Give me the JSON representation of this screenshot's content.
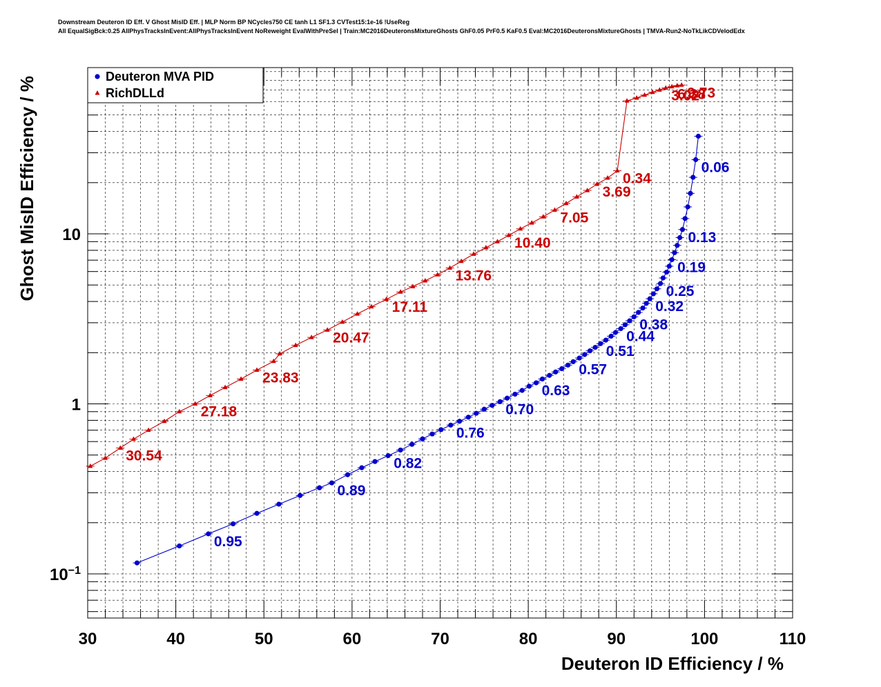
{
  "title": {
    "line1": "Downstream Deuteron ID Eff. V Ghost MisID Eff. | MLP Norm BP NCycles750 CE tanh L1 SF1.3 CVTest15:1e-16 !UseReg",
    "line2": "All EqualSigBck:0.25 AllPhysTracksInEvent:AllPhysTracksInEvent NoReweight EvalWithPreSel | Train:MC2016DeuteronsMixtureGhosts GhF0.05 PrF0.5 KaF0.5 Eval:MC2016DeuteronsMixtureGhosts | TMVA-Run2-NoTkLikCDVelodEdx"
  },
  "chart_data": {
    "type": "line",
    "xlabel": "Deuteron ID Efficiency / %",
    "ylabel": "Ghost MisID Efficiency / %",
    "xlim": [
      30,
      110
    ],
    "ylim": [
      0.055,
      95
    ],
    "y_scale": "log",
    "grid": true,
    "legend_position": "top-left",
    "x_ticks": [
      "30",
      "40",
      "50",
      "60",
      "70",
      "80",
      "90",
      "100",
      "110"
    ],
    "y_ticks": [
      {
        "base": "10",
        "exp": "−1",
        "value": 0.1
      },
      {
        "base": "1",
        "exp": "",
        "value": 1
      },
      {
        "base": "10",
        "exp": "",
        "value": 10
      }
    ],
    "series": [
      {
        "name": "Deuteron MVA PID",
        "color": "#0000cc",
        "marker": "circle",
        "points": [
          [
            35.6,
            0.116
          ],
          [
            40.4,
            0.146
          ],
          [
            43.7,
            0.172
          ],
          [
            46.5,
            0.197
          ],
          [
            49.2,
            0.227
          ],
          [
            51.7,
            0.257
          ],
          [
            54.1,
            0.289
          ],
          [
            56.3,
            0.321
          ],
          [
            57.7,
            0.343
          ],
          [
            59.5,
            0.383
          ],
          [
            61.1,
            0.421
          ],
          [
            62.6,
            0.458
          ],
          [
            64.1,
            0.496
          ],
          [
            65.5,
            0.535
          ],
          [
            66.8,
            0.578
          ],
          [
            68.0,
            0.622
          ],
          [
            69.1,
            0.665
          ],
          [
            70.1,
            0.705
          ],
          [
            71.2,
            0.75
          ],
          [
            72.2,
            0.79
          ],
          [
            73.2,
            0.835
          ],
          [
            74.1,
            0.88
          ],
          [
            75.0,
            0.93
          ],
          [
            75.9,
            0.98
          ],
          [
            76.8,
            1.03
          ],
          [
            77.6,
            1.08
          ],
          [
            78.5,
            1.14
          ],
          [
            79.3,
            1.2
          ],
          [
            80.1,
            1.27
          ],
          [
            80.9,
            1.33
          ],
          [
            81.6,
            1.4
          ],
          [
            82.4,
            1.47
          ],
          [
            83.1,
            1.54
          ],
          [
            83.8,
            1.61
          ],
          [
            84.5,
            1.69
          ],
          [
            85.1,
            1.77
          ],
          [
            85.8,
            1.86
          ],
          [
            86.4,
            1.95
          ],
          [
            87.0,
            2.05
          ],
          [
            87.6,
            2.15
          ],
          [
            88.2,
            2.26
          ],
          [
            88.8,
            2.37
          ],
          [
            89.4,
            2.5
          ],
          [
            89.9,
            2.63
          ],
          [
            90.5,
            2.77
          ],
          [
            91.0,
            2.92
          ],
          [
            91.5,
            3.08
          ],
          [
            92.0,
            3.25
          ],
          [
            92.5,
            3.45
          ],
          [
            93.0,
            3.66
          ],
          [
            93.4,
            3.9
          ],
          [
            93.8,
            4.15
          ],
          [
            94.2,
            4.44
          ],
          [
            94.6,
            4.75
          ],
          [
            95.0,
            5.1
          ],
          [
            95.3,
            5.5
          ],
          [
            95.7,
            5.95
          ],
          [
            96.0,
            6.45
          ],
          [
            96.3,
            7.05
          ],
          [
            96.6,
            7.75
          ],
          [
            96.9,
            8.55
          ],
          [
            97.2,
            9.5
          ],
          [
            97.5,
            10.6
          ],
          [
            97.8,
            12.3
          ],
          [
            98.1,
            14.4
          ],
          [
            98.4,
            17.3
          ],
          [
            98.7,
            21.5
          ],
          [
            99.0,
            27.3
          ],
          [
            99.3,
            37.5
          ]
        ],
        "labels": [
          {
            "text": "0.95",
            "x": 43.7,
            "y": 0.172
          },
          {
            "text": "0.89",
            "x": 57.7,
            "y": 0.343
          },
          {
            "text": "0.82",
            "x": 64.1,
            "y": 0.496
          },
          {
            "text": "0.76",
            "x": 71.2,
            "y": 0.75
          },
          {
            "text": "0.70",
            "x": 76.8,
            "y": 1.03
          },
          {
            "text": "0.63",
            "x": 80.9,
            "y": 1.33
          },
          {
            "text": "0.57",
            "x": 85.1,
            "y": 1.77
          },
          {
            "text": "0.51",
            "x": 88.2,
            "y": 2.26
          },
          {
            "text": "0.44",
            "x": 90.5,
            "y": 2.77
          },
          {
            "text": "0.38",
            "x": 92.0,
            "y": 3.25
          },
          {
            "text": "0.32",
            "x": 93.8,
            "y": 4.15
          },
          {
            "text": "0.25",
            "x": 95.0,
            "y": 5.1
          },
          {
            "text": "0.19",
            "x": 96.3,
            "y": 7.05
          },
          {
            "text": "0.13",
            "x": 97.5,
            "y": 10.6
          },
          {
            "text": "0.06",
            "x": 99.0,
            "y": 27.3
          }
        ]
      },
      {
        "name": "RichDLLd",
        "color": "#cc0000",
        "marker": "triangle",
        "points": [
          [
            30.3,
            0.43
          ],
          [
            32.0,
            0.48
          ],
          [
            33.7,
            0.55
          ],
          [
            35.2,
            0.62
          ],
          [
            36.9,
            0.7
          ],
          [
            38.7,
            0.79
          ],
          [
            40.4,
            0.9
          ],
          [
            42.2,
            1.0
          ],
          [
            43.9,
            1.12
          ],
          [
            45.6,
            1.25
          ],
          [
            47.4,
            1.4
          ],
          [
            49.2,
            1.58
          ],
          [
            51.1,
            1.78
          ],
          [
            51.8,
            1.97
          ],
          [
            53.6,
            2.21
          ],
          [
            55.4,
            2.46
          ],
          [
            57.2,
            2.72
          ],
          [
            58.9,
            3.03
          ],
          [
            60.6,
            3.38
          ],
          [
            62.2,
            3.73
          ],
          [
            63.9,
            4.12
          ],
          [
            65.5,
            4.55
          ],
          [
            66.9,
            4.9
          ],
          [
            68.3,
            5.3
          ],
          [
            69.7,
            5.75
          ],
          [
            71.1,
            6.3
          ],
          [
            72.4,
            6.9
          ],
          [
            73.8,
            7.6
          ],
          [
            75.2,
            8.3
          ],
          [
            76.5,
            9.0
          ],
          [
            77.8,
            9.8
          ],
          [
            79.1,
            10.7
          ],
          [
            80.4,
            11.6
          ],
          [
            81.7,
            12.6
          ],
          [
            83.0,
            13.8
          ],
          [
            84.3,
            15.1
          ],
          [
            85.5,
            16.5
          ],
          [
            86.7,
            18.0
          ],
          [
            87.8,
            19.6
          ],
          [
            89.0,
            21.3
          ],
          [
            90.1,
            23.5
          ],
          [
            91.2,
            60.5
          ],
          [
            92.3,
            63.0
          ],
          [
            93.2,
            65.5
          ],
          [
            94.1,
            68.0
          ],
          [
            94.9,
            70.2
          ],
          [
            95.6,
            72.1
          ],
          [
            96.3,
            73.4
          ],
          [
            96.9,
            74.4
          ],
          [
            97.4,
            75.0
          ]
        ],
        "labels": [
          {
            "text": "30.54",
            "x": 33.7,
            "y": 0.55
          },
          {
            "text": "27.18",
            "x": 42.2,
            "y": 1.0
          },
          {
            "text": "23.83",
            "x": 49.2,
            "y": 1.58
          },
          {
            "text": "20.47",
            "x": 57.2,
            "y": 2.72
          },
          {
            "text": "17.11",
            "x": 63.9,
            "y": 4.12
          },
          {
            "text": "13.76",
            "x": 71.1,
            "y": 6.3
          },
          {
            "text": "10.40",
            "x": 77.8,
            "y": 9.8
          },
          {
            "text": "7.05",
            "x": 83.0,
            "y": 13.8
          },
          {
            "text": "3.69",
            "x": 87.8,
            "y": 19.6
          },
          {
            "text": "0.34",
            "x": 90.1,
            "y": 23.5
          },
          {
            "text": "3.02",
            "x": 95.6,
            "y": 72.1
          },
          {
            "text": "6.38",
            "x": 96.3,
            "y": 73.4
          },
          {
            "text": "9.73",
            "x": 97.4,
            "y": 75.0
          }
        ]
      }
    ]
  }
}
